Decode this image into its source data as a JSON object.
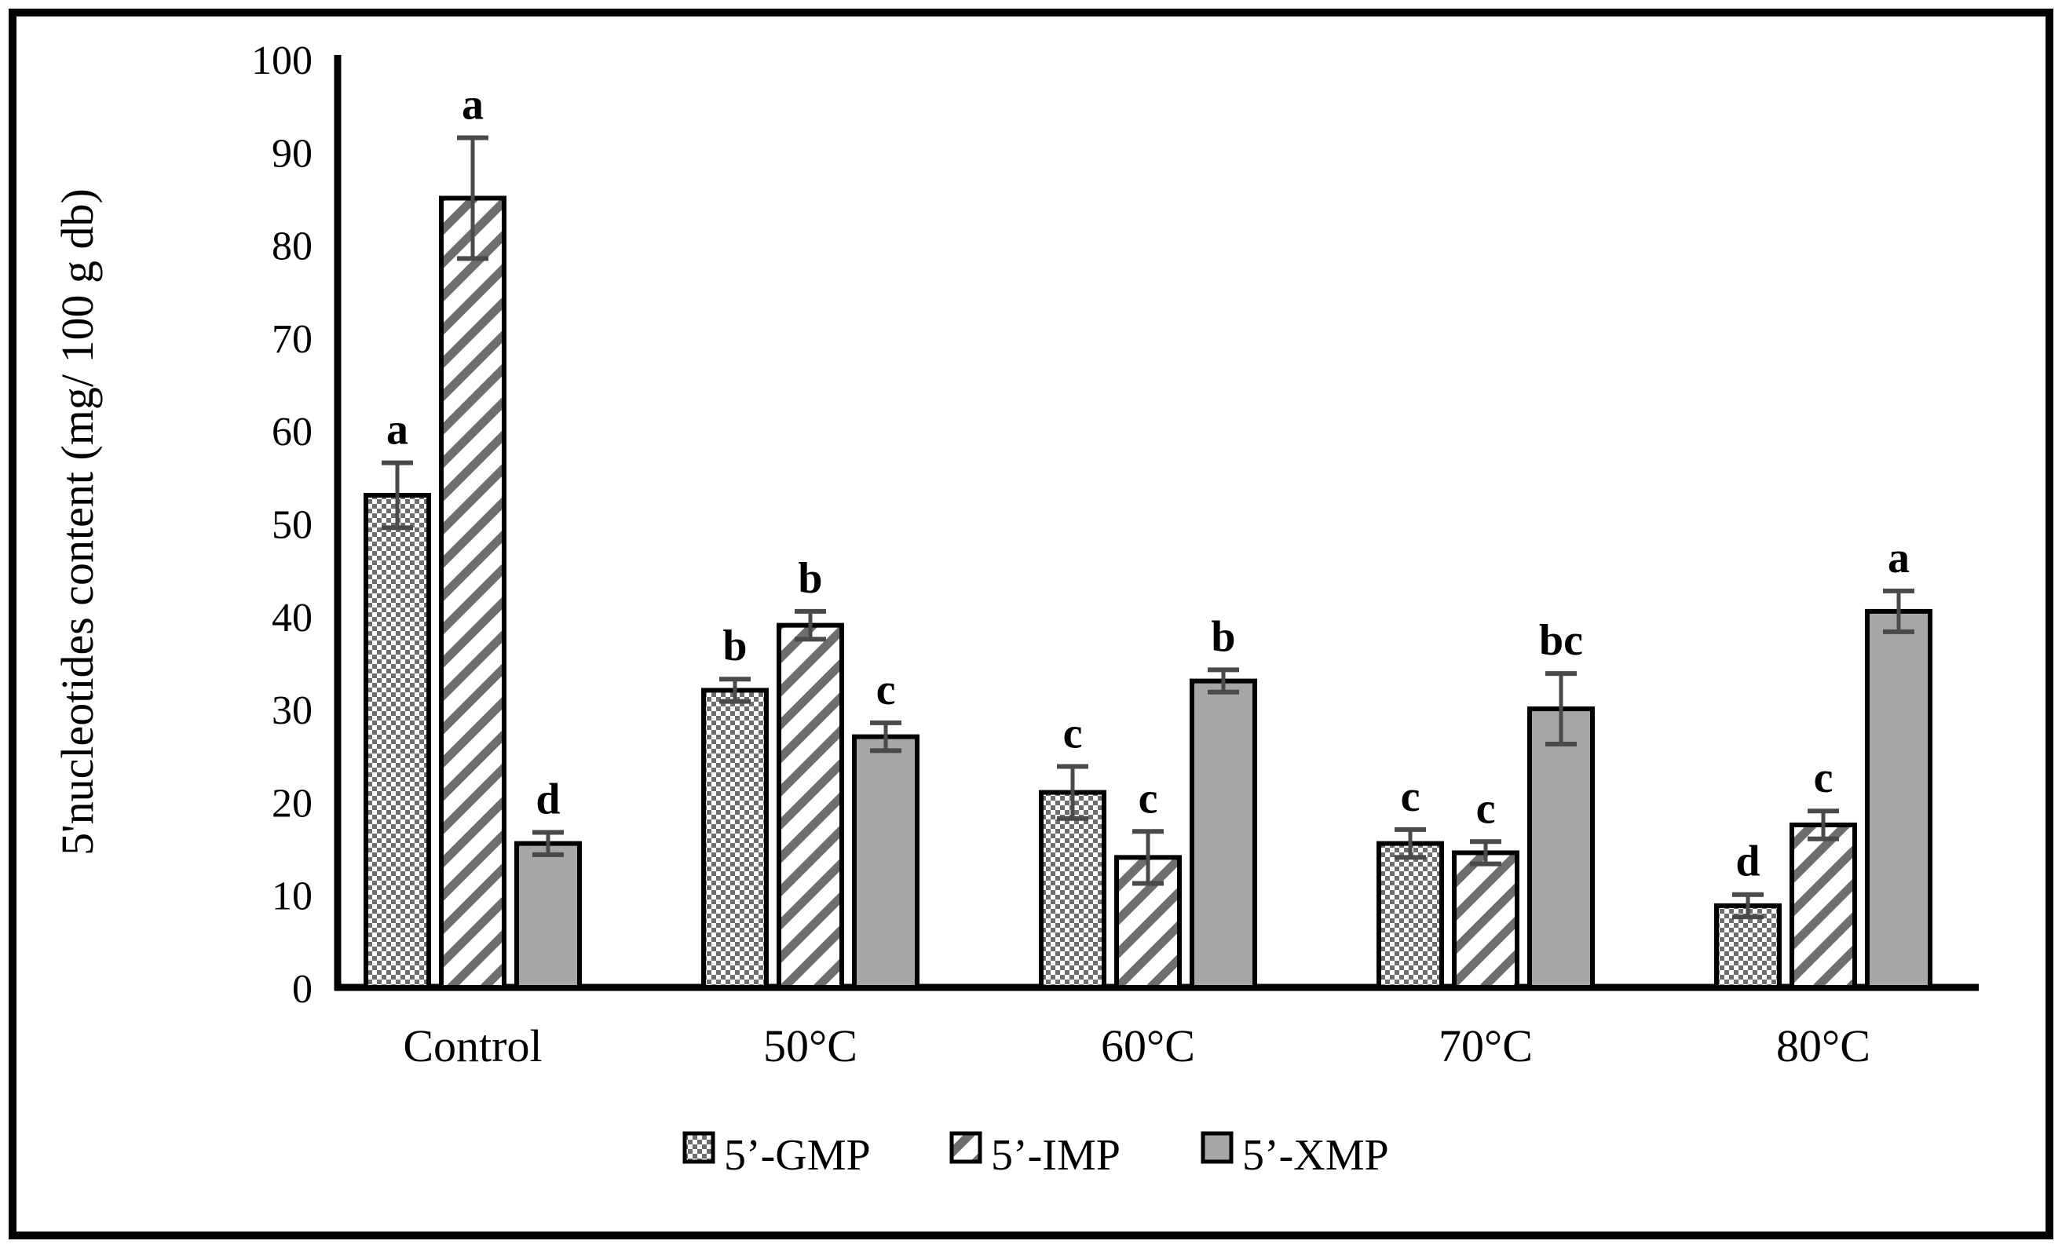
{
  "figure": {
    "background": "#ffffff",
    "border_color": "#000000"
  },
  "chart_data": {
    "type": "bar",
    "title": "",
    "xlabel": "",
    "ylabel": "5'nucleotides content (mg/ 100 g db)",
    "ylim": [
      0,
      100
    ],
    "yticks": [
      0,
      10,
      20,
      30,
      40,
      50,
      60,
      70,
      80,
      90,
      100
    ],
    "grid": false,
    "legend_position": "bottom",
    "categories": [
      "Control",
      "50°C",
      "60°C",
      "70°C",
      "80°C"
    ],
    "series": [
      {
        "name": "5’-GMP",
        "pattern": "checker",
        "values": [
          53,
          32,
          21,
          15.5,
          8.8
        ],
        "errors": [
          3.5,
          1.2,
          2.8,
          1.5,
          1.2
        ],
        "letters": [
          "a",
          "b",
          "c",
          "c",
          "d"
        ]
      },
      {
        "name": "5’-IMP",
        "pattern": "diagonal-stripe",
        "values": [
          85,
          39,
          14,
          14.5,
          17.5
        ],
        "errors": [
          6.5,
          1.5,
          2.8,
          1.2,
          1.5
        ],
        "letters": [
          "a",
          "b",
          "c",
          "c",
          "c"
        ]
      },
      {
        "name": "5’-XMP",
        "pattern": "solid-gray",
        "values": [
          15.5,
          27,
          33,
          30,
          40.5
        ],
        "errors": [
          1.2,
          1.5,
          1.2,
          3.8,
          2.2
        ],
        "letters": [
          "d",
          "c",
          "b",
          "bc",
          "a"
        ]
      }
    ],
    "colors": {
      "pattern_gray": "#6e6e6e",
      "solid_gray": "#a6a6a6",
      "bar_outline": "#000000",
      "error_bar": "#4a4a4a",
      "axis": "#000000",
      "text": "#000000"
    }
  }
}
